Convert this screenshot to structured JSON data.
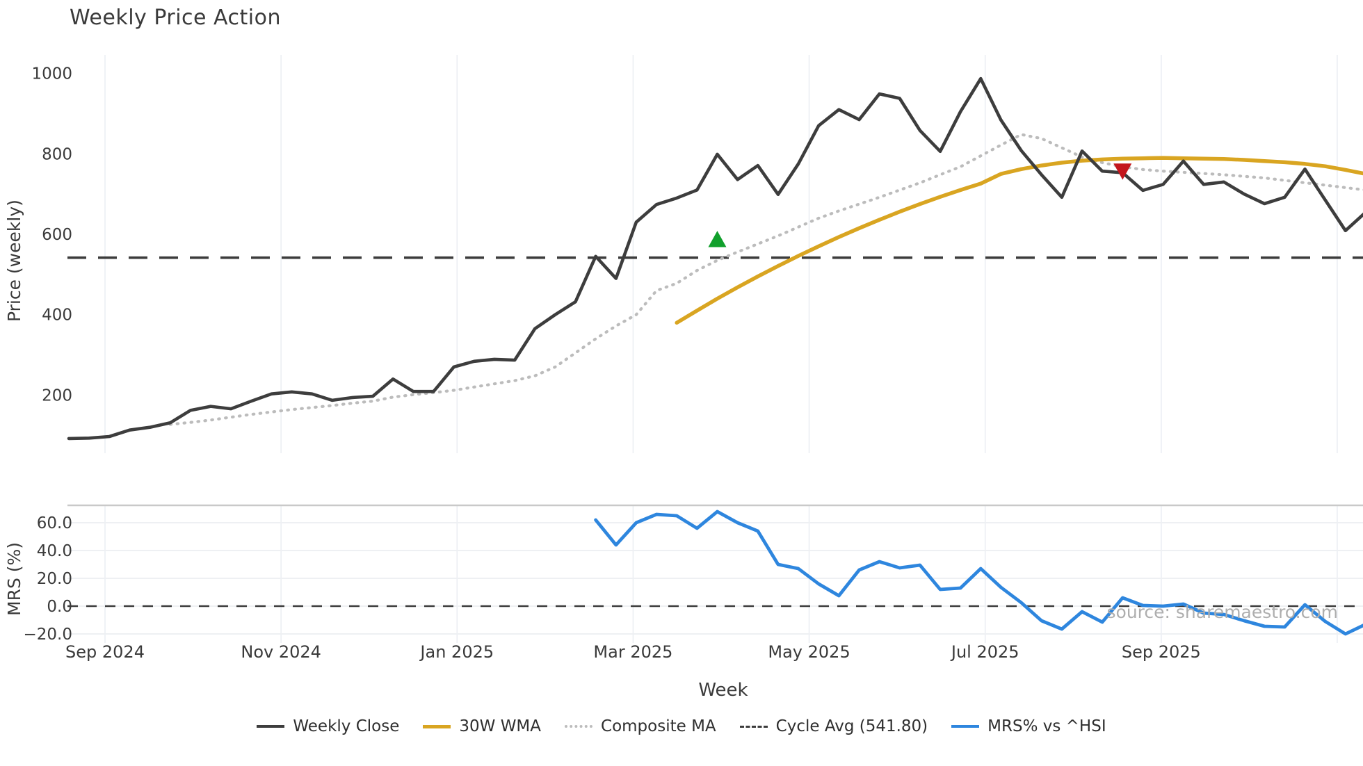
{
  "title": "Weekly Price Action",
  "watermark": "source: sharemaestro.com",
  "axes": {
    "main_ylabel": "Price (weekly)",
    "mrs_ylabel": "MRS (%)",
    "xlabel": "Week",
    "main_yticks": [
      "1000",
      "800",
      "600",
      "400",
      "200"
    ],
    "main_ytick_values": [
      1000,
      800,
      600,
      400,
      200
    ],
    "mrs_yticks": [
      "60.0",
      "40.0",
      "20.0",
      "0.0",
      "−20.0"
    ],
    "mrs_ytick_values": [
      60,
      40,
      20,
      0,
      -20
    ],
    "xticks": [
      "Sep 2024",
      "Nov 2024",
      "Jan 2025",
      "Mar 2025",
      "May 2025",
      "Jul 2025",
      "Sep 2025"
    ],
    "n_month_gridlines": 8
  },
  "colors": {
    "close": "#3d3d3d",
    "wma": "#d9a521",
    "composite": "#bcbcbc",
    "cycle": "#3c3c3c",
    "mrs": "#2e86de",
    "buy_marker": "#11a02c",
    "sell_marker": "#c4161c",
    "gridline": "#ebeef3",
    "mrs_gridline": "#eef0f3",
    "mrs_top_spine": "#c9c9c9",
    "text": "#3a3a3a"
  },
  "legend": [
    {
      "label": "Weekly Close",
      "style": "solid",
      "color": "#3d3d3d",
      "thickness": 4
    },
    {
      "label": "30W WMA",
      "style": "solid",
      "color": "#d9a521",
      "thickness": 5
    },
    {
      "label": "Composite MA",
      "style": "dotted",
      "color": "#bcbcbc",
      "thickness": 4
    },
    {
      "label": "Cycle Avg (541.80)",
      "style": "dashed",
      "color": "#3c3c3c",
      "thickness": 3
    },
    {
      "label": "MRS% vs ^HSI",
      "style": "solid",
      "color": "#2e86de",
      "thickness": 4
    }
  ],
  "chart_data": {
    "type": "line",
    "title": "Weekly Price Action",
    "xlabel": "Week",
    "x_unit": "week_index",
    "x_range_note": "weekly points from late Aug 2024, x ticks every 2 months Sep 2024 - Sep 2025",
    "main_ylim": [
      55,
      1045
    ],
    "mrs_ylim": [
      -27,
      73
    ],
    "cycle_avg": 541.8,
    "series": [
      {
        "name": "Weekly Close",
        "values": [
          92,
          93,
          97,
          113,
          120,
          131,
          162,
          172,
          166,
          185,
          203,
          208,
          203,
          187,
          194,
          197,
          240,
          209,
          209,
          270,
          284,
          289,
          287,
          365,
          400,
          432,
          545,
          490,
          630,
          674,
          690,
          710,
          799,
          736,
          771,
          699,
          775,
          870,
          910,
          885,
          949,
          938,
          858,
          806,
          905,
          987,
          884,
          808,
          748,
          692,
          807,
          757,
          753,
          709,
          724,
          782,
          724,
          730,
          700,
          676,
          692,
          762,
          685,
          609,
          655
        ]
      },
      {
        "name": "30W WMA",
        "values": [
          null,
          null,
          null,
          null,
          null,
          null,
          null,
          null,
          null,
          null,
          null,
          null,
          null,
          null,
          null,
          null,
          null,
          null,
          null,
          null,
          null,
          null,
          null,
          null,
          null,
          null,
          null,
          null,
          null,
          null,
          380,
          410,
          440,
          468,
          495,
          521,
          546,
          570,
          593,
          615,
          636,
          656,
          675,
          693,
          710,
          726,
          750,
          762,
          771,
          778,
          783,
          786,
          788,
          789,
          790,
          789,
          788,
          787,
          785,
          782,
          779,
          775,
          769,
          760,
          750
        ]
      },
      {
        "name": "Composite MA",
        "values": [
          null,
          null,
          null,
          null,
          null,
          127,
          132,
          138,
          145,
          152,
          158,
          164,
          169,
          174,
          180,
          185,
          195,
          201,
          206,
          212,
          220,
          228,
          236,
          248,
          270,
          305,
          340,
          372,
          400,
          460,
          478,
          510,
          535,
          556,
          576,
          596,
          618,
          640,
          658,
          675,
          692,
          710,
          728,
          748,
          768,
          795,
          822,
          848,
          838,
          815,
          792,
          778,
          768,
          761,
          757,
          754,
          751,
          748,
          744,
          740,
          734,
          728,
          722,
          716,
          710
        ]
      },
      {
        "name": "MRS% vs ^HSI",
        "values": [
          null,
          null,
          null,
          null,
          null,
          null,
          null,
          null,
          null,
          null,
          null,
          null,
          null,
          null,
          null,
          null,
          null,
          null,
          null,
          null,
          null,
          null,
          null,
          null,
          null,
          null,
          62,
          44,
          60,
          66,
          65,
          56,
          68,
          60,
          54,
          30,
          27,
          16,
          7.5,
          26,
          32,
          27.5,
          29.5,
          12,
          13,
          27,
          13.5,
          2.5,
          -10.5,
          -16.5,
          -4,
          -11.5,
          6,
          0.5,
          0,
          1.5,
          -5,
          -6,
          -10.5,
          -14.5,
          -15,
          1,
          -11,
          -20,
          -13
        ]
      }
    ],
    "markers": [
      {
        "name": "buy-signal",
        "shape": "triangle-up",
        "week_index": 32,
        "value": 586,
        "color": "#11a02c"
      },
      {
        "name": "sell-signal",
        "shape": "triangle-down",
        "week_index": 52,
        "value": 758,
        "color": "#c4161c"
      }
    ]
  }
}
